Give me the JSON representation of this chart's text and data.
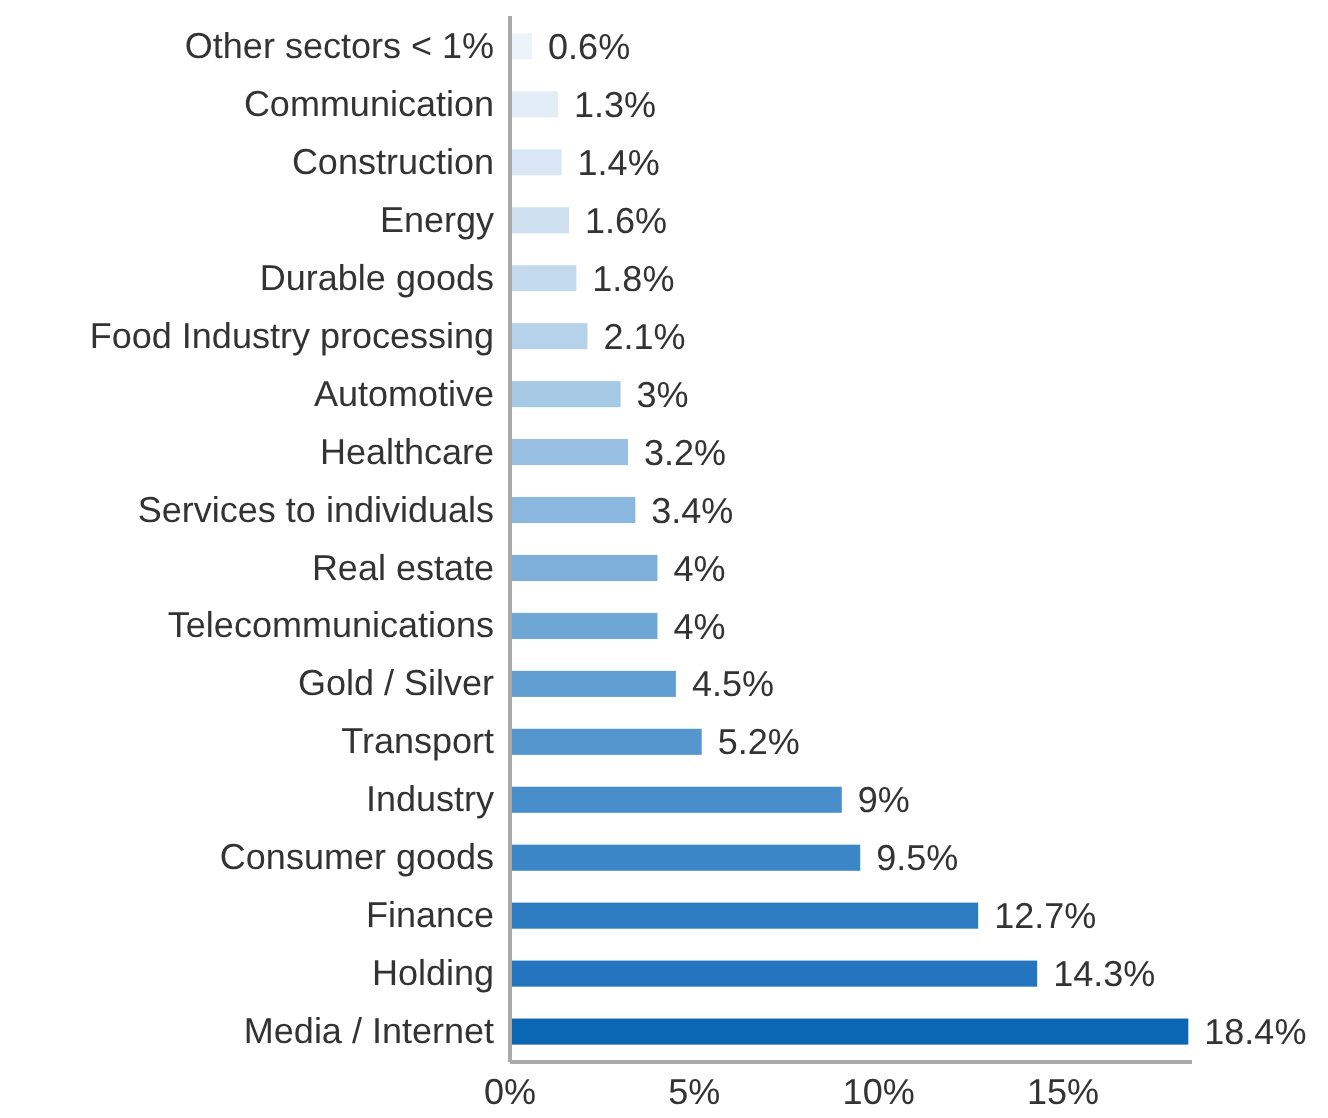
{
  "chart_data": {
    "type": "bar",
    "orientation": "horizontal",
    "categories": [
      "Other sectors < 1%",
      "Communication",
      "Construction",
      "Energy",
      "Durable goods",
      "Food Industry processing",
      "Automotive",
      "Healthcare",
      "Services to individuals",
      "Real estate",
      "Telecommunications",
      "Gold / Silver",
      "Transport",
      "Industry",
      "Consumer goods",
      "Finance",
      "Holding",
      "Media / Internet"
    ],
    "values": [
      0.6,
      1.3,
      1.4,
      1.6,
      1.8,
      2.1,
      3,
      3.2,
      3.4,
      4,
      4,
      4.5,
      5.2,
      9,
      9.5,
      12.7,
      14.3,
      18.4
    ],
    "value_labels": [
      "0.6%",
      "1.3%",
      "1.4%",
      "1.6%",
      "1.8%",
      "2.1%",
      "3%",
      "3.2%",
      "3.4%",
      "4%",
      "4%",
      "4.5%",
      "5.2%",
      "9%",
      "9.5%",
      "12.7%",
      "14.3%",
      "18.4%"
    ],
    "colors": [
      "#edf3fa",
      "#e3edf7",
      "#d9e7f4",
      "#cfe1f1",
      "#c3daee",
      "#b5d2ea",
      "#a6c9e6",
      "#98c0e2",
      "#89b7de",
      "#7cafda",
      "#6ea7d6",
      "#619ed2",
      "#5596ce",
      "#488eca",
      "#3b86c6",
      "#2e7dc2",
      "#2275be",
      "#0b66b3"
    ],
    "xlim": [
      0,
      18.5
    ],
    "xticks": [
      {
        "value": 0,
        "label": "0%"
      },
      {
        "value": 5,
        "label": "5%"
      },
      {
        "value": 10,
        "label": "10%"
      },
      {
        "value": 15,
        "label": "15%"
      }
    ]
  }
}
